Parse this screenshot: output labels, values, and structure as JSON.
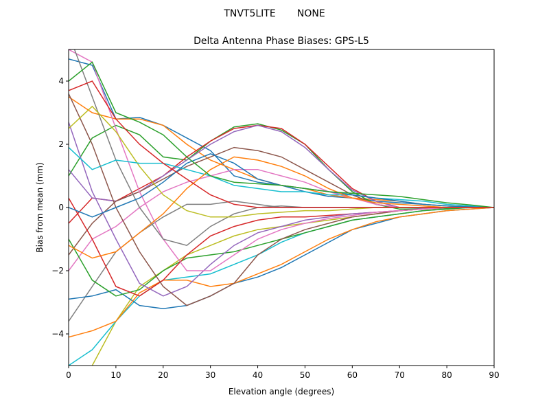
{
  "figure": {
    "suptitle": "TNVT5LITE       NONE"
  },
  "chart_data": {
    "type": "line",
    "title": "Delta Antenna Phase Biases: GPS-L5",
    "xlabel": "Elevation angle (degrees)",
    "ylabel": "Bias from mean (mm)",
    "xlim": [
      0,
      90
    ],
    "ylim": [
      -5,
      5
    ],
    "xticks": [
      0,
      10,
      20,
      30,
      40,
      50,
      60,
      70,
      80,
      90
    ],
    "yticks": [
      -4,
      -2,
      0,
      2,
      4
    ],
    "ytick_labels": [
      "−4",
      "−2",
      "0",
      "2",
      "4"
    ],
    "grid": false,
    "legend": "none",
    "colors": [
      "#1f77b4",
      "#ff7f0e",
      "#2ca02c",
      "#d62728",
      "#9467bd",
      "#8c564b",
      "#e377c2",
      "#7f7f7f",
      "#bcbd22",
      "#17becf"
    ],
    "x": [
      0,
      5,
      10,
      15,
      20,
      25,
      30,
      35,
      40,
      45,
      50,
      55,
      60,
      65,
      70,
      75,
      80,
      85,
      90
    ],
    "series": [
      {
        "values": [
          4.7,
          4.5,
          2.8,
          2.85,
          2.6,
          2.2,
          1.8,
          1.0,
          0.8,
          0.7,
          0.5,
          0.35,
          0.3,
          0.2,
          0.15,
          0.1,
          0.05,
          0.02,
          0
        ]
      },
      {
        "values": [
          3.5,
          3.0,
          2.8,
          2.8,
          2.6,
          2.0,
          1.5,
          1.2,
          0.9,
          0.7,
          0.6,
          0.4,
          0.3,
          0.25,
          0.2,
          0.1,
          0.05,
          0.02,
          0
        ]
      },
      {
        "values": [
          1.0,
          2.2,
          2.6,
          2.3,
          1.6,
          1.5,
          2.1,
          2.55,
          2.65,
          2.45,
          2.0,
          1.2,
          0.5,
          0.1,
          -0.05,
          -0.05,
          -0.02,
          0,
          0
        ]
      },
      {
        "values": [
          -0.5,
          0.3,
          0.2,
          0.6,
          1.0,
          1.6,
          2.1,
          2.5,
          2.6,
          2.5,
          2.0,
          1.3,
          0.6,
          0.2,
          0,
          0,
          0,
          0,
          0
        ]
      },
      {
        "values": [
          1.2,
          0.3,
          0.2,
          0.5,
          1.0,
          1.5,
          2.0,
          2.4,
          2.6,
          2.4,
          1.9,
          1.2,
          0.55,
          0.2,
          0.0,
          -0.02,
          0,
          0,
          0
        ]
      },
      {
        "values": [
          -1.5,
          -0.5,
          0.2,
          0.5,
          0.9,
          1.3,
          1.6,
          1.9,
          1.8,
          1.6,
          1.2,
          0.8,
          0.4,
          0.1,
          0,
          0,
          0,
          0,
          0
        ]
      },
      {
        "values": [
          -2.0,
          -1.0,
          -0.6,
          0,
          0.5,
          0.8,
          1.0,
          1.2,
          1.2,
          1.0,
          0.8,
          0.5,
          0.3,
          0.1,
          0,
          0,
          0,
          0,
          0
        ]
      },
      {
        "values": [
          -3.6,
          -2.5,
          -1.4,
          -0.8,
          -0.3,
          0.1,
          0.1,
          0.2,
          0.1,
          0,
          0,
          0,
          0,
          0,
          0,
          0,
          0,
          0,
          0
        ]
      },
      {
        "values": [
          -5.5,
          -5,
          -3.6,
          -2.5,
          -2.0,
          -1.5,
          -1.2,
          -0.9,
          -0.7,
          -0.6,
          -0.5,
          -0.4,
          -0.3,
          -0.2,
          -0.1,
          -0.05,
          0,
          0,
          0
        ]
      },
      {
        "values": [
          -5.0,
          -4.5,
          -3.6,
          -2.8,
          -2.3,
          -2.2,
          -2.1,
          -1.8,
          -1.5,
          -1.1,
          -0.8,
          -0.6,
          -0.4,
          -0.3,
          -0.2,
          -0.1,
          -0.05,
          0,
          0
        ]
      },
      {
        "values": [
          -2.9,
          -2.8,
          -2.6,
          -3.1,
          -3.2,
          -3.1,
          -2.8,
          -2.4,
          -2.2,
          -1.9,
          -1.5,
          -1.1,
          -0.7,
          -0.5,
          -0.3,
          -0.2,
          -0.1,
          -0.05,
          0
        ]
      },
      {
        "values": [
          -4.1,
          -3.9,
          -3.6,
          -2.7,
          -2.3,
          -2.3,
          -2.5,
          -2.4,
          -2.1,
          -1.8,
          -1.4,
          -1.0,
          -0.7,
          -0.45,
          -0.3,
          -0.2,
          -0.1,
          -0.05,
          0
        ]
      },
      {
        "values": [
          -1.0,
          -2.3,
          -2.8,
          -2.6,
          -2.0,
          -1.6,
          -1.5,
          -1.4,
          -1.2,
          -1.0,
          -0.8,
          -0.6,
          -0.4,
          -0.3,
          -0.2,
          -0.1,
          -0.05,
          0,
          0
        ]
      },
      {
        "values": [
          0.3,
          -1.0,
          -2.5,
          -2.8,
          -2.3,
          -1.5,
          -0.9,
          -0.6,
          -0.4,
          -0.3,
          -0.3,
          -0.25,
          -0.2,
          -0.15,
          -0.1,
          -0.05,
          0,
          0,
          0
        ]
      },
      {
        "values": [
          2.7,
          0.5,
          -1.0,
          -2.4,
          -2.8,
          -2.5,
          -1.8,
          -1.2,
          -0.8,
          -0.6,
          -0.4,
          -0.3,
          -0.2,
          -0.15,
          -0.1,
          -0.05,
          0,
          0,
          0
        ]
      },
      {
        "values": [
          3.6,
          2.0,
          0.0,
          -1.4,
          -2.5,
          -3.1,
          -2.8,
          -2.4,
          -1.5,
          -1.0,
          -0.7,
          -0.5,
          -0.3,
          -0.2,
          -0.1,
          -0.05,
          0,
          0,
          0
        ]
      },
      {
        "values": [
          5.0,
          4.6,
          2.5,
          0.5,
          -1.0,
          -2.0,
          -2.0,
          -1.5,
          -1.0,
          -0.7,
          -0.5,
          -0.35,
          -0.25,
          -0.15,
          -0.1,
          -0.05,
          0,
          0,
          0
        ]
      },
      {
        "values": [
          5.5,
          3.5,
          1.5,
          0.0,
          -1.0,
          -1.2,
          -0.6,
          -0.2,
          0.0,
          0.05,
          0,
          0,
          0,
          0,
          0,
          0,
          0,
          0,
          0
        ]
      },
      {
        "values": [
          2.5,
          3.2,
          2.4,
          1.3,
          0.4,
          -0.1,
          -0.3,
          -0.3,
          -0.2,
          -0.15,
          -0.1,
          -0.1,
          -0.05,
          0,
          0,
          0,
          0,
          0,
          0
        ]
      },
      {
        "values": [
          1.9,
          1.2,
          1.5,
          1.4,
          1.4,
          1.2,
          1.0,
          0.7,
          0.6,
          0.5,
          0.5,
          0.4,
          0.4,
          0.3,
          0.25,
          0.2,
          0.1,
          0.05,
          0
        ]
      },
      {
        "values": [
          0,
          -0.3,
          0.0,
          0.3,
          0.8,
          1.4,
          1.7,
          1.4,
          0.9,
          0.7,
          0.6,
          0.5,
          0.4,
          0.3,
          0.2,
          0.1,
          0.05,
          0.02,
          0
        ]
      },
      {
        "values": [
          -1.2,
          -1.6,
          -1.4,
          -0.8,
          -0.2,
          0.6,
          1.2,
          1.6,
          1.5,
          1.3,
          1.0,
          0.6,
          0.3,
          0.15,
          0.1,
          0.05,
          0,
          0,
          0
        ]
      },
      {
        "values": [
          4.0,
          4.6,
          3.0,
          2.7,
          2.3,
          1.6,
          1.0,
          0.8,
          0.75,
          0.7,
          0.6,
          0.5,
          0.45,
          0.4,
          0.35,
          0.25,
          0.15,
          0.08,
          0
        ]
      },
      {
        "values": [
          3.7,
          4.0,
          2.8,
          2.0,
          1.4,
          0.9,
          0.4,
          0.1,
          0,
          0,
          0,
          0,
          0,
          0,
          0,
          0,
          0,
          0,
          0
        ]
      }
    ]
  }
}
